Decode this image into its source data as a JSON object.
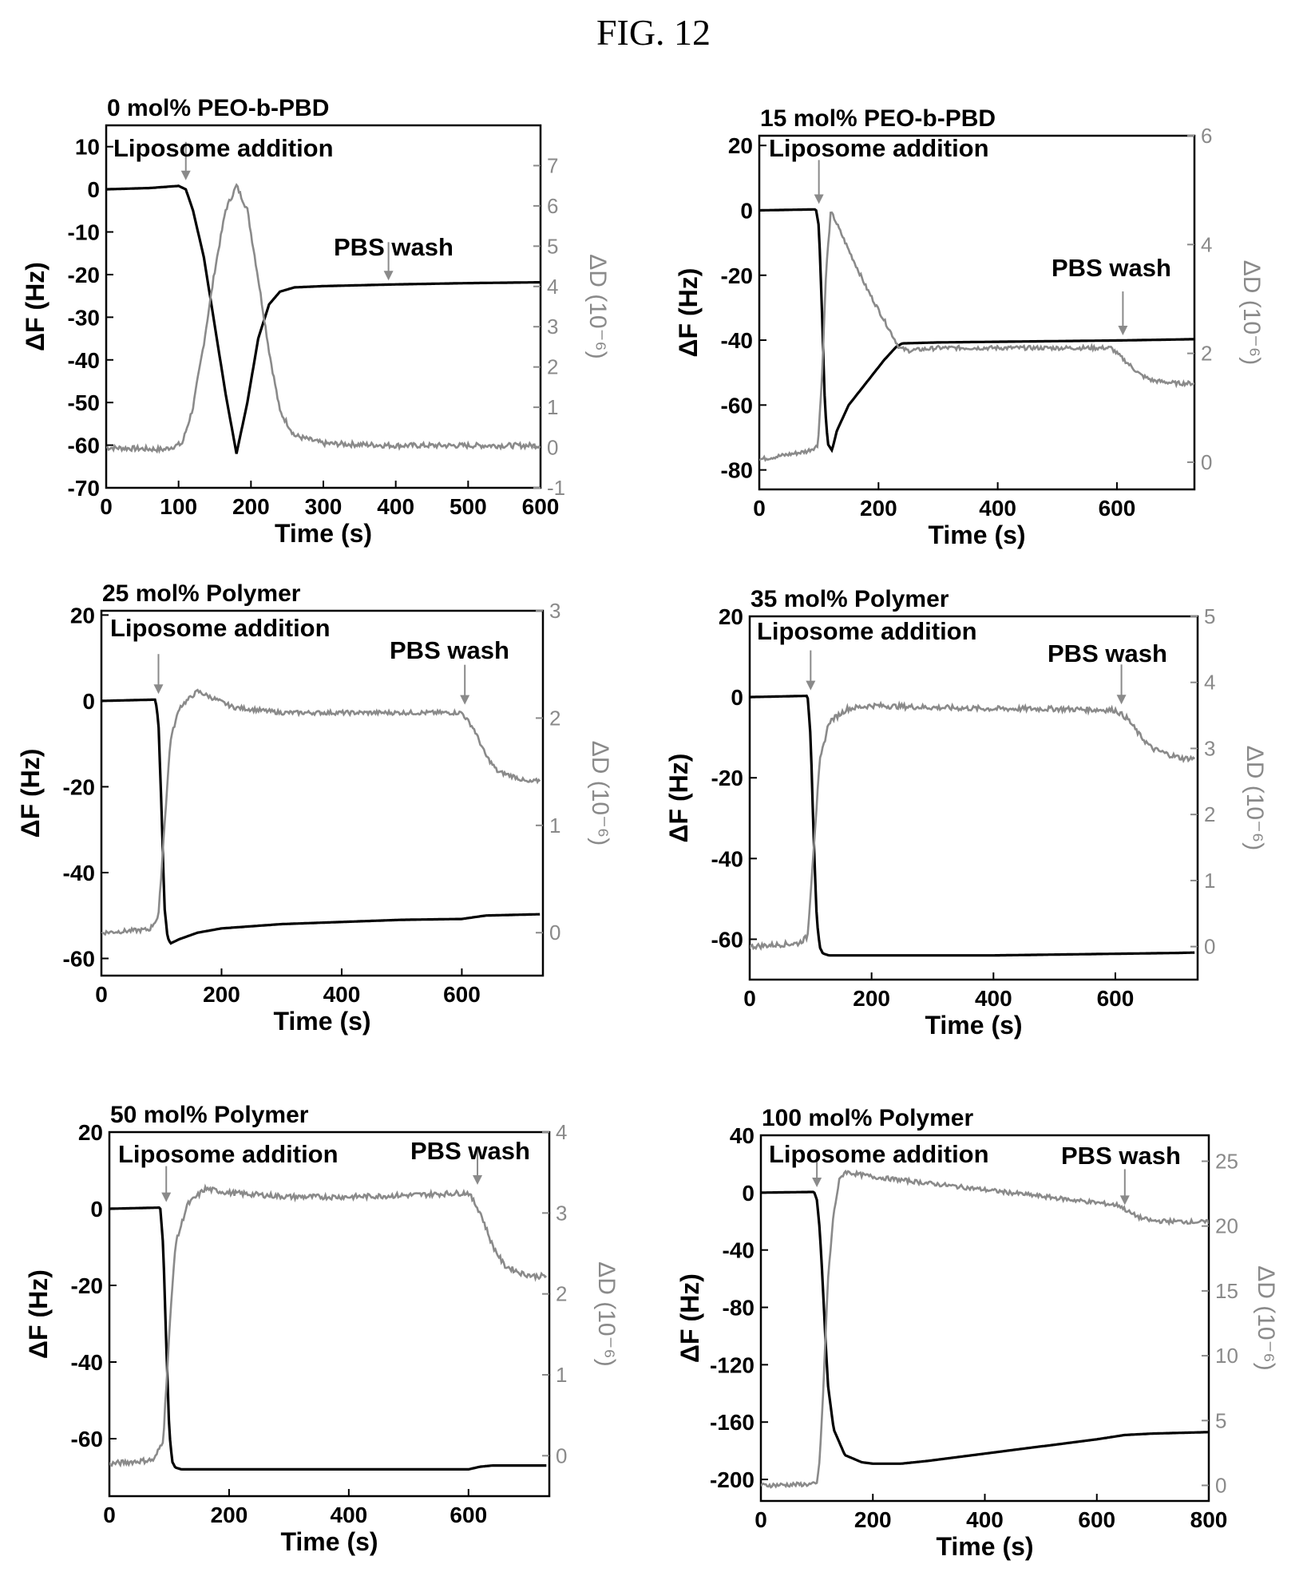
{
  "figure_title": "FIG. 12",
  "colors": {
    "frequency": "#000000",
    "dissipation": "#8a8a8a",
    "arrow": "#8a8a8a"
  },
  "chart_data": [
    {
      "type": "line",
      "title": "0 mol% PEO-b-PBD",
      "xlabel": "Time (s)",
      "ylabel": "ΔF (Hz)",
      "y2label": "ΔD (10⁻⁶)",
      "xlim": [
        0,
        600
      ],
      "ylim": [
        -70,
        15
      ],
      "y2lim": [
        -1,
        8
      ],
      "xticks": [
        0,
        100,
        200,
        300,
        400,
        500,
        600
      ],
      "yticks": [
        10,
        0,
        -10,
        -20,
        -30,
        -40,
        -50,
        -60,
        -70
      ],
      "y2ticks": [
        -1,
        0,
        1,
        2,
        3,
        4,
        5,
        6,
        7
      ],
      "series": [
        {
          "axis": "left",
          "x": [
            0,
            60,
            100,
            110,
            120,
            135,
            150,
            165,
            180,
            195,
            210,
            225,
            240,
            260,
            300,
            400,
            500,
            600
          ],
          "y": [
            0,
            0.3,
            0.8,
            0,
            -5,
            -16,
            -32,
            -48,
            -62,
            -50,
            -35,
            -27,
            -24,
            -23,
            -22.7,
            -22.3,
            -22,
            -21.8
          ]
        },
        {
          "axis": "right",
          "x": [
            0,
            80,
            105,
            120,
            135,
            150,
            165,
            180,
            195,
            210,
            225,
            240,
            260,
            300,
            400,
            500,
            600
          ],
          "y": [
            0,
            -0.05,
            0.1,
            1,
            2.6,
            4.4,
            5.9,
            6.5,
            5.9,
            4.2,
            2.4,
            0.9,
            0.3,
            0.1,
            0.05,
            0.05,
            0.05
          ],
          "noise": 0.05
        }
      ],
      "annotations": [
        {
          "text": "Liposome addition",
          "x": 110,
          "curve_y": 1
        },
        {
          "text": "PBS wash",
          "x": 390,
          "curve_y": -22.5
        }
      ]
    },
    {
      "type": "line",
      "title": "15 mol% PEO-b-PBD",
      "xlabel": "Time (s)",
      "ylabel": "ΔF (Hz)",
      "y2label": "ΔD (10⁻⁶)",
      "xlim": [
        0,
        730
      ],
      "ylim": [
        -86,
        23
      ],
      "y2lim": [
        -0.5,
        6
      ],
      "xticks": [
        0,
        200,
        400,
        600
      ],
      "yticks": [
        20,
        0,
        -20,
        -40,
        -60,
        -80
      ],
      "y2ticks": [
        0,
        2,
        4,
        6
      ],
      "series": [
        {
          "axis": "left",
          "x": [
            0,
            95,
            100,
            105,
            110,
            115,
            122,
            130,
            150,
            180,
            210,
            230,
            240,
            300,
            400,
            500,
            600,
            700,
            730
          ],
          "y": [
            0,
            0.3,
            -5,
            -30,
            -60,
            -72,
            -74,
            -68,
            -60,
            -53,
            -46,
            -42,
            -41,
            -40.7,
            -40.5,
            -40.3,
            -40.1,
            -39.8,
            -39.7
          ]
        },
        {
          "axis": "right",
          "x": [
            0,
            80,
            98,
            105,
            112,
            120,
            125,
            150,
            180,
            210,
            235,
            250,
            300,
            400,
            500,
            590,
            620,
            640,
            660,
            700,
            730
          ],
          "y": [
            0.05,
            0.2,
            0.3,
            1.5,
            3.5,
            4.6,
            4.5,
            3.9,
            3.2,
            2.6,
            2.1,
            2.05,
            2.1,
            2.1,
            2.1,
            2.1,
            1.8,
            1.6,
            1.5,
            1.45,
            1.45
          ],
          "noise": 0.04
        }
      ],
      "annotations": [
        {
          "text": "Liposome addition",
          "x": 100,
          "curve_y": 0.5
        },
        {
          "text": "PBS wash",
          "x": 610,
          "curve_y": -40
        }
      ]
    },
    {
      "type": "line",
      "title": "25 mol% Polymer",
      "xlabel": "Time (s)",
      "ylabel": "ΔF (Hz)",
      "y2label": "ΔD (10⁻⁶)",
      "xlim": [
        0,
        735
      ],
      "ylim": [
        -64,
        21
      ],
      "y2lim": [
        -0.4,
        3
      ],
      "xticks": [
        0,
        200,
        400,
        600
      ],
      "yticks": [
        20,
        0,
        -20,
        -40,
        -60
      ],
      "y2ticks": [
        0,
        1,
        2,
        3
      ],
      "series": [
        {
          "axis": "left",
          "x": [
            0,
            90,
            95,
            100,
            105,
            110,
            115,
            130,
            160,
            200,
            300,
            400,
            500,
            600,
            640,
            700,
            730
          ],
          "y": [
            0,
            0.3,
            -5,
            -25,
            -48,
            -55,
            -56.5,
            -55.5,
            -54,
            -53,
            -52,
            -51.5,
            -51,
            -50.8,
            -50,
            -49.8,
            -49.7
          ]
        },
        {
          "axis": "right",
          "x": [
            0,
            80,
            95,
            105,
            115,
            130,
            160,
            180,
            220,
            300,
            400,
            500,
            600,
            620,
            640,
            660,
            690,
            710,
            730
          ],
          "y": [
            0,
            0.03,
            0.15,
            1.0,
            1.8,
            2.1,
            2.25,
            2.2,
            2.1,
            2.05,
            2.05,
            2.05,
            2.05,
            1.9,
            1.65,
            1.5,
            1.45,
            1.4,
            1.42
          ],
          "noise": 0.04
        }
      ],
      "annotations": [
        {
          "text": "Liposome addition",
          "x": 95,
          "curve_y": 0.5
        },
        {
          "text": "PBS wash",
          "x": 605,
          "curve_y": -2
        }
      ]
    },
    {
      "type": "line",
      "title": "35 mol% Polymer",
      "xlabel": "Time (s)",
      "ylabel": "ΔF (Hz)",
      "y2label": "ΔD (10⁻⁶)",
      "xlim": [
        0,
        735
      ],
      "ylim": [
        -70,
        20
      ],
      "y2lim": [
        -0.5,
        5
      ],
      "xticks": [
        0,
        200,
        400,
        600
      ],
      "yticks": [
        20,
        0,
        -20,
        -40,
        -60
      ],
      "y2ticks": [
        0,
        1,
        2,
        3,
        4,
        5
      ],
      "series": [
        {
          "axis": "left",
          "x": [
            0,
            95,
            100,
            105,
            110,
            115,
            120,
            130,
            150,
            200,
            300,
            400,
            500,
            600,
            700,
            730
          ],
          "y": [
            0,
            0.3,
            -10,
            -35,
            -55,
            -62,
            -63.5,
            -64,
            -64,
            -64,
            -64,
            -64,
            -63.8,
            -63.6,
            -63.4,
            -63.3
          ]
        },
        {
          "axis": "right",
          "x": [
            0,
            80,
            95,
            105,
            115,
            130,
            160,
            200,
            300,
            400,
            500,
            600,
            620,
            640,
            660,
            690,
            710,
            730
          ],
          "y": [
            0,
            0.05,
            0.15,
            1.5,
            2.8,
            3.4,
            3.6,
            3.65,
            3.62,
            3.6,
            3.6,
            3.58,
            3.45,
            3.2,
            3.0,
            2.9,
            2.85,
            2.85
          ],
          "noise": 0.05
        }
      ],
      "annotations": [
        {
          "text": "Liposome addition",
          "x": 100,
          "curve_y": 0.5
        },
        {
          "text": "PBS wash",
          "x": 610,
          "curve_y": -3
        }
      ]
    },
    {
      "type": "line",
      "title": "50 mol% Polymer",
      "xlabel": "Time (s)",
      "ylabel": "ΔF (Hz)",
      "y2label": "ΔD (10⁻⁶)",
      "xlim": [
        0,
        735
      ],
      "ylim": [
        -75,
        20
      ],
      "y2lim": [
        -0.5,
        4
      ],
      "xticks": [
        0,
        200,
        400,
        600
      ],
      "yticks": [
        20,
        0,
        -20,
        -40,
        -60
      ],
      "y2ticks": [
        0,
        1,
        2,
        3,
        4
      ],
      "series": [
        {
          "axis": "left",
          "x": [
            0,
            85,
            90,
            95,
            100,
            105,
            110,
            120,
            140,
            200,
            300,
            400,
            500,
            600,
            620,
            640,
            700,
            730
          ],
          "y": [
            0,
            0.3,
            -10,
            -35,
            -58,
            -66,
            -67.5,
            -68,
            -68,
            -68,
            -68,
            -68,
            -68,
            -68,
            -67.3,
            -67,
            -67,
            -67
          ]
        },
        {
          "axis": "right",
          "x": [
            0,
            75,
            90,
            100,
            110,
            130,
            160,
            200,
            300,
            400,
            500,
            600,
            620,
            640,
            660,
            690,
            710,
            730
          ],
          "y": [
            -0.1,
            -0.05,
            0.2,
            1.5,
            2.6,
            3.1,
            3.3,
            3.25,
            3.2,
            3.2,
            3.22,
            3.25,
            3.0,
            2.6,
            2.35,
            2.25,
            2.22,
            2.22
          ],
          "noise": 0.05
        }
      ],
      "annotations": [
        {
          "text": "Liposome addition",
          "x": 95,
          "curve_y": 0.5
        },
        {
          "text": "PBS wash",
          "x": 615,
          "curve_y": 5
        }
      ]
    },
    {
      "type": "line",
      "title": "100 mol% Polymer",
      "xlabel": "Time (s)",
      "ylabel": "ΔF (Hz)",
      "y2label": "ΔD (10⁻⁶)",
      "xlim": [
        0,
        800
      ],
      "ylim": [
        -215,
        40
      ],
      "y2lim": [
        -1.2,
        27
      ],
      "xticks": [
        0,
        200,
        400,
        600,
        800
      ],
      "yticks": [
        40,
        0,
        -40,
        -80,
        -120,
        -160,
        -200
      ],
      "y2ticks": [
        0,
        5,
        10,
        15,
        20,
        25
      ],
      "series": [
        {
          "axis": "left",
          "x": [
            0,
            95,
            100,
            105,
            110,
            115,
            120,
            130,
            150,
            180,
            200,
            250,
            300,
            400,
            500,
            600,
            650,
            700,
            800
          ],
          "y": [
            0,
            0.5,
            -5,
            -25,
            -60,
            -100,
            -135,
            -165,
            -183,
            -188,
            -189,
            -189,
            -187,
            -182,
            -177,
            -172,
            -169,
            -168,
            -167
          ]
        },
        {
          "axis": "right",
          "x": [
            0,
            100,
            105,
            110,
            115,
            120,
            130,
            140,
            150,
            160,
            200,
            300,
            400,
            500,
            600,
            640,
            660,
            680,
            700,
            800
          ],
          "y": [
            0,
            0.1,
            2,
            6,
            11,
            16,
            21,
            23.5,
            24.2,
            24.1,
            23.8,
            23.3,
            22.8,
            22.3,
            21.8,
            21.6,
            21,
            20.6,
            20.4,
            20.3
          ],
          "noise": 0.04
        }
      ],
      "annotations": [
        {
          "text": "Liposome addition",
          "x": 100,
          "curve_y": 0.5
        },
        {
          "text": "PBS wash",
          "x": 650,
          "curve_y": -12
        }
      ]
    }
  ]
}
